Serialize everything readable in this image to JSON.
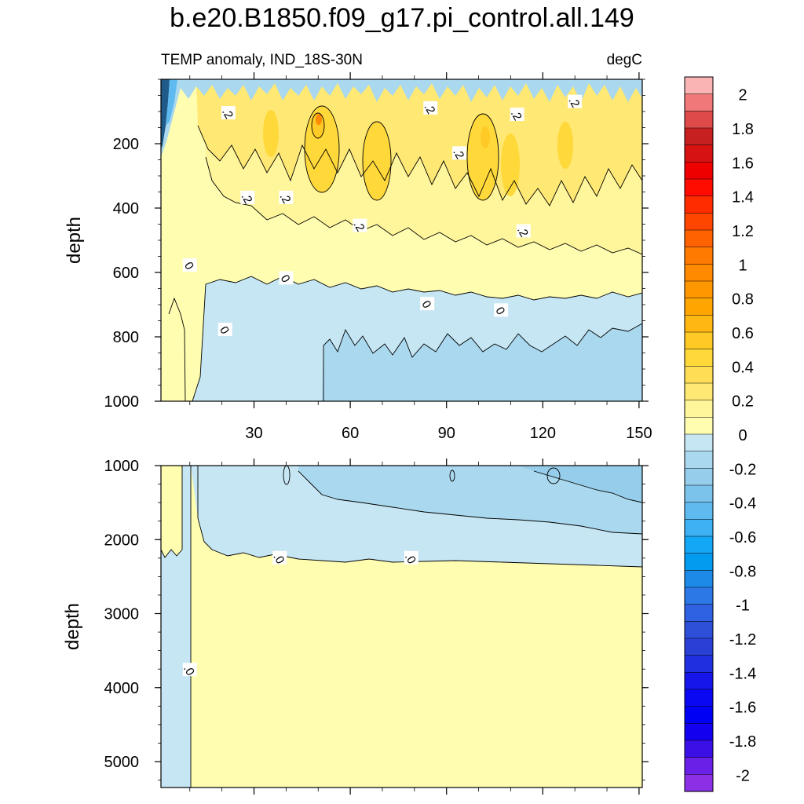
{
  "title": "b.e20.B1850.f09_g17.pi_control.all.149",
  "subtitle_left": "TEMP anomaly, IND_18S-30N",
  "subtitle_right": "degC",
  "colors": {
    "pos": [
      "#fffdb0",
      "#fff59a",
      "#ffe873",
      "#ffde56",
      "#ffd83a",
      "#ffc926",
      "#ffb812",
      "#ffa500",
      "#ff9800",
      "#ff8a00",
      "#ff7a00",
      "#ff6200",
      "#ff4600",
      "#ff2c00",
      "#ff0c00",
      "#ee0000",
      "#d71212",
      "#c62020",
      "#de4a4a",
      "#f07878",
      "#fab4b4"
    ],
    "neg": [
      "#c6e6f4",
      "#aad8ee",
      "#95cdea",
      "#7cc3ec",
      "#5fbaf0",
      "#3db1f3",
      "#14a7f5",
      "#029bf0",
      "#1e8ae8",
      "#2c78e6",
      "#2f62e2",
      "#2e4fd8",
      "#2a3fd6",
      "#2030e0",
      "#1616ea",
      "#0a08f2",
      "#0000f4",
      "#1200ee",
      "#3a10e6",
      "#6a20e6",
      "#8c30e6"
    ],
    "deep_blue": "#1f5a88",
    "outline": "#000000"
  },
  "colorbar": {
    "labels": [
      "2",
      "1.8",
      "1.6",
      "1.4",
      "1.2",
      "1",
      "0.8",
      "0.6",
      "0.4",
      "0.2",
      "0",
      "-0.2",
      "-0.4",
      "-0.6",
      "-0.8",
      "-1",
      "-1.2",
      "-1.4",
      "-1.6",
      "-1.8",
      "-2"
    ]
  },
  "chart_data": [
    {
      "type": "contour",
      "name": "upper-panel",
      "xlabel": "",
      "ylabel": "depth",
      "xlim": [
        1,
        151
      ],
      "ylim": [
        1000,
        0
      ],
      "xticks": [
        30,
        60,
        90,
        120,
        150
      ],
      "yticks": [
        200,
        400,
        600,
        800,
        1000
      ],
      "units": "degC",
      "contour_labels": [
        {
          "text": ".2",
          "x": 22,
          "y": 105
        },
        {
          "text": ".2",
          "x": 85,
          "y": 90
        },
        {
          "text": ".2",
          "x": 94,
          "y": 230
        },
        {
          "text": ".2",
          "x": 112,
          "y": 110
        },
        {
          "text": ".2",
          "x": 130,
          "y": 70
        },
        {
          "text": ".2",
          "x": 28,
          "y": 368
        },
        {
          "text": ".2",
          "x": 40,
          "y": 368
        },
        {
          "text": ".2",
          "x": 63,
          "y": 455
        },
        {
          "text": ".2",
          "x": 114,
          "y": 472
        },
        {
          "text": "0",
          "x": 10,
          "y": 578
        },
        {
          "text": "0",
          "x": 40,
          "y": 618
        },
        {
          "text": "0",
          "x": 84,
          "y": 698
        },
        {
          "text": "0",
          "x": 107,
          "y": 718
        },
        {
          "text": "0",
          "x": 21,
          "y": 778
        }
      ]
    },
    {
      "type": "contour",
      "name": "lower-panel",
      "xlabel": "",
      "ylabel": "depth",
      "xlim": [
        1,
        151
      ],
      "ylim": [
        5350,
        1000
      ],
      "yticks": [
        1000,
        2000,
        3000,
        4000,
        5000
      ],
      "units": "degC",
      "contour_labels": [
        {
          "text": ".0",
          "x": 38,
          "y": 2250
        },
        {
          "text": ".0",
          "x": 79,
          "y": 2250
        },
        {
          "text": ".0",
          "x": 10,
          "y": 3760
        }
      ]
    }
  ]
}
